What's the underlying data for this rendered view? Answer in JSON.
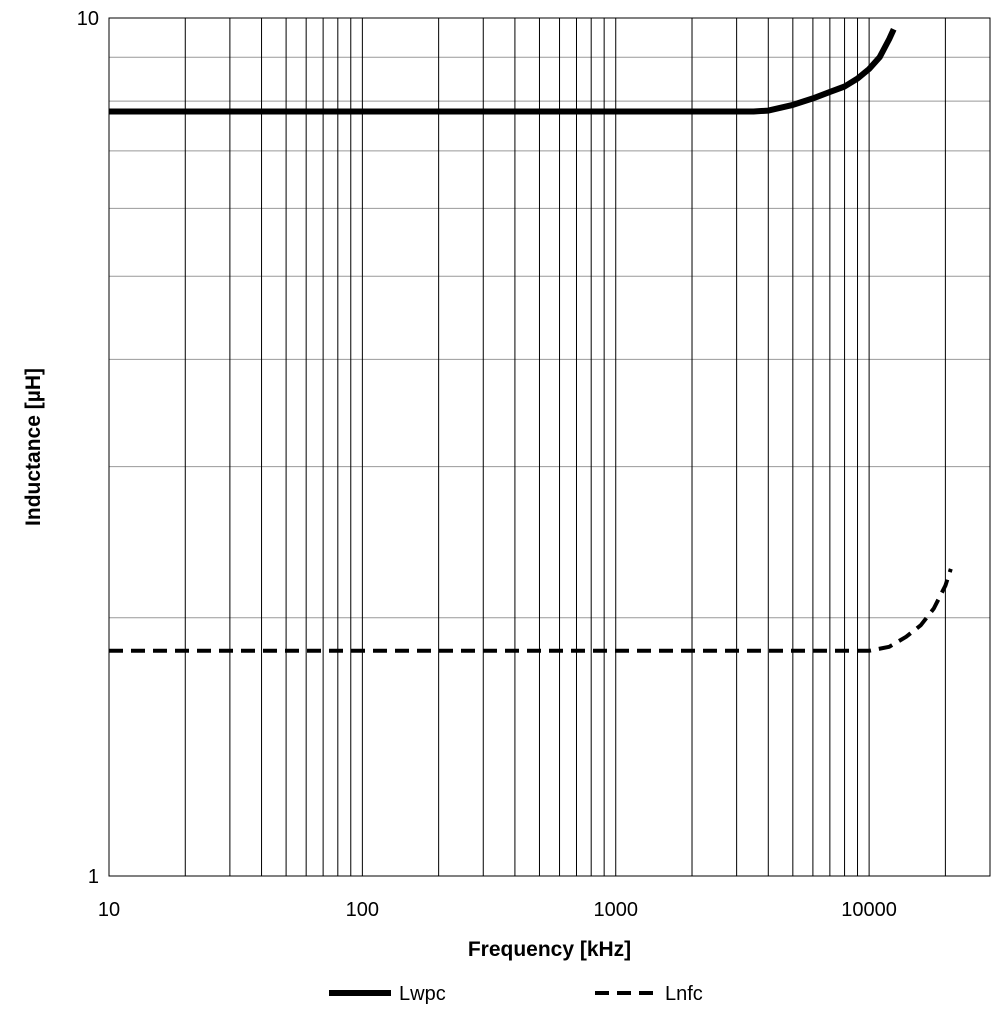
{
  "chart_data": {
    "type": "line",
    "title": "",
    "xlabel": "Frequency [kHz]",
    "ylabel": "Inductance [µH]",
    "x_scale": "log",
    "y_scale": "log",
    "xlim": [
      10,
      30000
    ],
    "ylim": [
      1,
      10
    ],
    "x_ticks": [
      10,
      100,
      1000,
      10000
    ],
    "x_tick_labels": [
      "10",
      "100",
      "1000",
      "10000"
    ],
    "y_ticks": [
      1,
      10
    ],
    "y_tick_labels": [
      "1",
      "10"
    ],
    "grid": true,
    "legend_position": "bottom",
    "series": [
      {
        "name": "Lwpc",
        "line_style": "solid",
        "color": "#000000",
        "x": [
          10,
          100,
          1000,
          3500,
          4000,
          5000,
          6000,
          7000,
          8000,
          9000,
          10000,
          11000,
          12000,
          12500
        ],
        "y": [
          7.78,
          7.78,
          7.78,
          7.78,
          7.8,
          7.92,
          8.06,
          8.2,
          8.32,
          8.5,
          8.72,
          9.0,
          9.45,
          9.7
        ]
      },
      {
        "name": "Lnfc",
        "line_style": "dashed",
        "color": "#000000",
        "x": [
          10,
          100,
          1000,
          10000,
          12000,
          14000,
          16000,
          18000,
          20000,
          21000
        ],
        "y": [
          1.83,
          1.83,
          1.83,
          1.83,
          1.85,
          1.9,
          1.96,
          2.05,
          2.18,
          2.28
        ]
      }
    ]
  }
}
